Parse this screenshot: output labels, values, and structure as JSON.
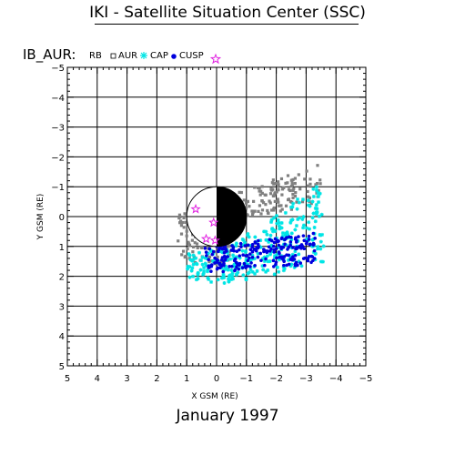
{
  "title": "IKI - Satellite Situation Center (SSC)",
  "subtitle": "January    1997",
  "chart_data": {
    "type": "scatter",
    "title": "IKI - Satellite Situation Center (SSC)",
    "xlabel": "X GSM (RE)",
    "ylabel": "Y GSM (RE)",
    "xlim": [
      5,
      -5
    ],
    "ylim": [
      -5,
      5
    ],
    "grid": true,
    "x_ticks": [
      "5",
      "4",
      "3",
      "2",
      "1",
      "0",
      "−1",
      "−2",
      "−3",
      "−4",
      "−5"
    ],
    "y_ticks": [
      "−5",
      "−4",
      "−3",
      "−2",
      "−1",
      "0",
      "1",
      "2",
      "3",
      "4",
      "5"
    ],
    "legend": {
      "heading": "IB_AUR:",
      "placement": "top-left",
      "entries": [
        "RB",
        "AUR",
        "CAP",
        "CUSP"
      ]
    },
    "earth": {
      "radius": 1,
      "day_side": "positive-x",
      "night_side": "negative-x shaded black"
    },
    "series": [
      {
        "name": "AUR",
        "marker": "square",
        "color": "#808080",
        "bands": [
          {
            "x0": 1.3,
            "x1": -3.5,
            "ylo0": -0.1,
            "yhi0": 0.4,
            "ylo1": -1.8,
            "yhi1": -0.4,
            "n": 220
          },
          {
            "x0": 1.3,
            "x1": -0.5,
            "ylo0": 0.4,
            "yhi0": 1.5,
            "ylo1": 0.9,
            "yhi1": 1.7,
            "n": 70
          }
        ]
      },
      {
        "name": "CAP",
        "marker": "star",
        "color": "#00e5e5",
        "bands": [
          {
            "x0": -0.3,
            "x1": -3.6,
            "ylo0": 1.1,
            "yhi0": 2.3,
            "ylo1": -1.2,
            "yhi1": 1.6,
            "n": 240
          },
          {
            "x0": 1.0,
            "x1": -0.3,
            "ylo0": 1.2,
            "yhi0": 2.1,
            "ylo1": 1.1,
            "yhi1": 2.3,
            "n": 70
          }
        ]
      },
      {
        "name": "CUSP",
        "marker": "dot",
        "color": "#0000dd",
        "bands": [
          {
            "x0": 0.4,
            "x1": -3.3,
            "ylo0": 1.05,
            "yhi0": 1.9,
            "ylo1": 0.55,
            "yhi1": 1.6,
            "n": 220
          },
          {
            "x0": 0.8,
            "x1": 0.3,
            "ylo0": -0.35,
            "yhi0": -0.2,
            "ylo1": -0.3,
            "yhi1": -0.15,
            "n": 8
          }
        ]
      }
    ],
    "points": [
      {
        "series": "CUSP",
        "marker": "star-outline",
        "color": "#e020e0",
        "x": 0.7,
        "y": -0.25
      },
      {
        "series": "CUSP",
        "marker": "star-outline",
        "color": "#e020e0",
        "x": 0.1,
        "y": 0.2
      },
      {
        "series": "CUSP",
        "marker": "star-outline",
        "color": "#e020e0",
        "x": 0.35,
        "y": 0.75
      },
      {
        "series": "CUSP",
        "marker": "star-outline",
        "color": "#e020e0",
        "x": 0.05,
        "y": 0.8
      }
    ]
  }
}
